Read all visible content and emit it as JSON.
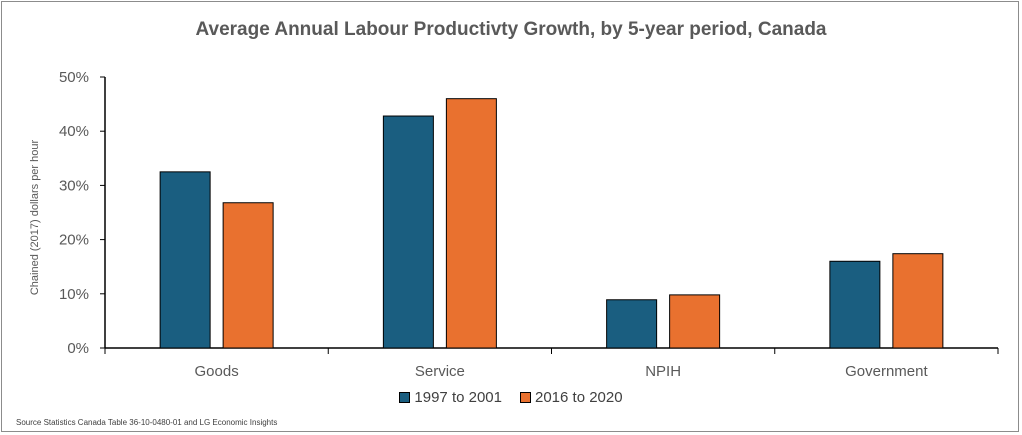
{
  "chart_data": {
    "type": "bar",
    "title": "Average Annual Labour Productivty Growth, by 5-year period, Canada",
    "ylabel": "Chained (2017) dollars per hour",
    "xlabel": "",
    "categories": [
      "Goods",
      "Service",
      "NPIH",
      "Government"
    ],
    "series": [
      {
        "name": "1997 to 2001",
        "values": [
          32.5,
          42.8,
          8.9,
          16.0
        ],
        "color": "#1a5e80"
      },
      {
        "name": "2016 to 2020",
        "values": [
          26.8,
          46.0,
          9.8,
          17.4
        ],
        "color": "#e9712f"
      }
    ],
    "ylim": [
      0,
      50
    ],
    "yticks": [
      "0%",
      "10%",
      "20%",
      "30%",
      "40%",
      "50%"
    ],
    "grid": false,
    "legend": "bottom-center"
  },
  "source_note": "Source Statistics Canada Table 36-10-0480-01 and LG Economic Insights"
}
